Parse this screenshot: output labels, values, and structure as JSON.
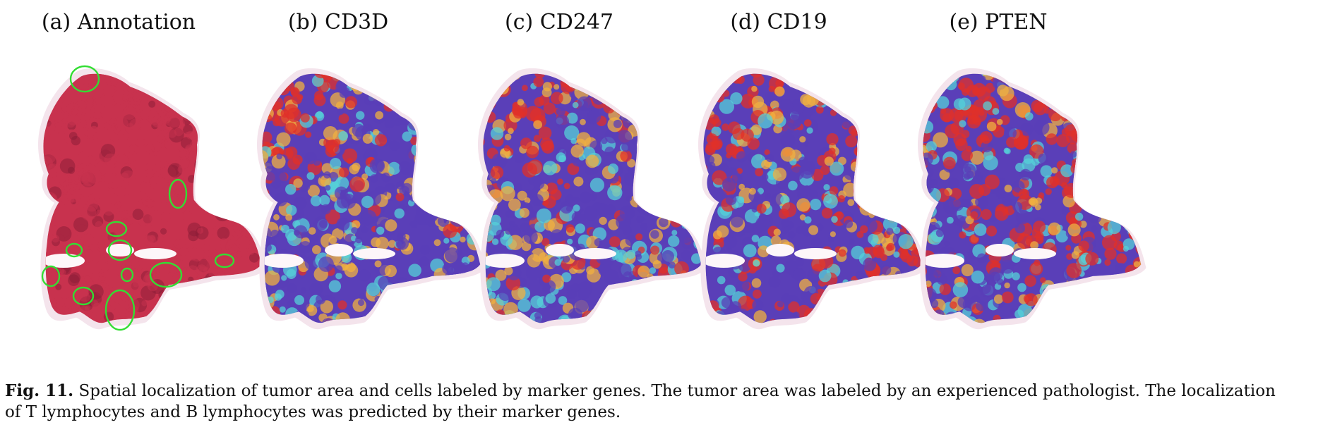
{
  "panels": [
    {
      "title": "(a) Annotation",
      "kind": "he"
    },
    {
      "title": "(b) CD3D",
      "kind": "cool"
    },
    {
      "title": "(c) CD247",
      "kind": "cool"
    },
    {
      "title": "(d) CD19",
      "kind": "mixed"
    },
    {
      "title": "(e) PTEN",
      "kind": "warm"
    }
  ],
  "caption": {
    "label": "Fig. 11.",
    "line1": "Spatial localization of tumor area and cells labeled by marker genes. The tumor area was labeled by an experienced pathologist. The localization",
    "line2": "of T lymphocytes and B lymphocytes was predicted by their marker genes."
  },
  "colors": {
    "tissue": "#c8324e",
    "tissue_dark": "#8a1c36",
    "annotation_outline": "#33dd33",
    "heat_hot": "#e0302a",
    "heat_warm": "#f0b040",
    "heat_cyan": "#56d0d8",
    "heat_cool": "#5a3fb8"
  }
}
